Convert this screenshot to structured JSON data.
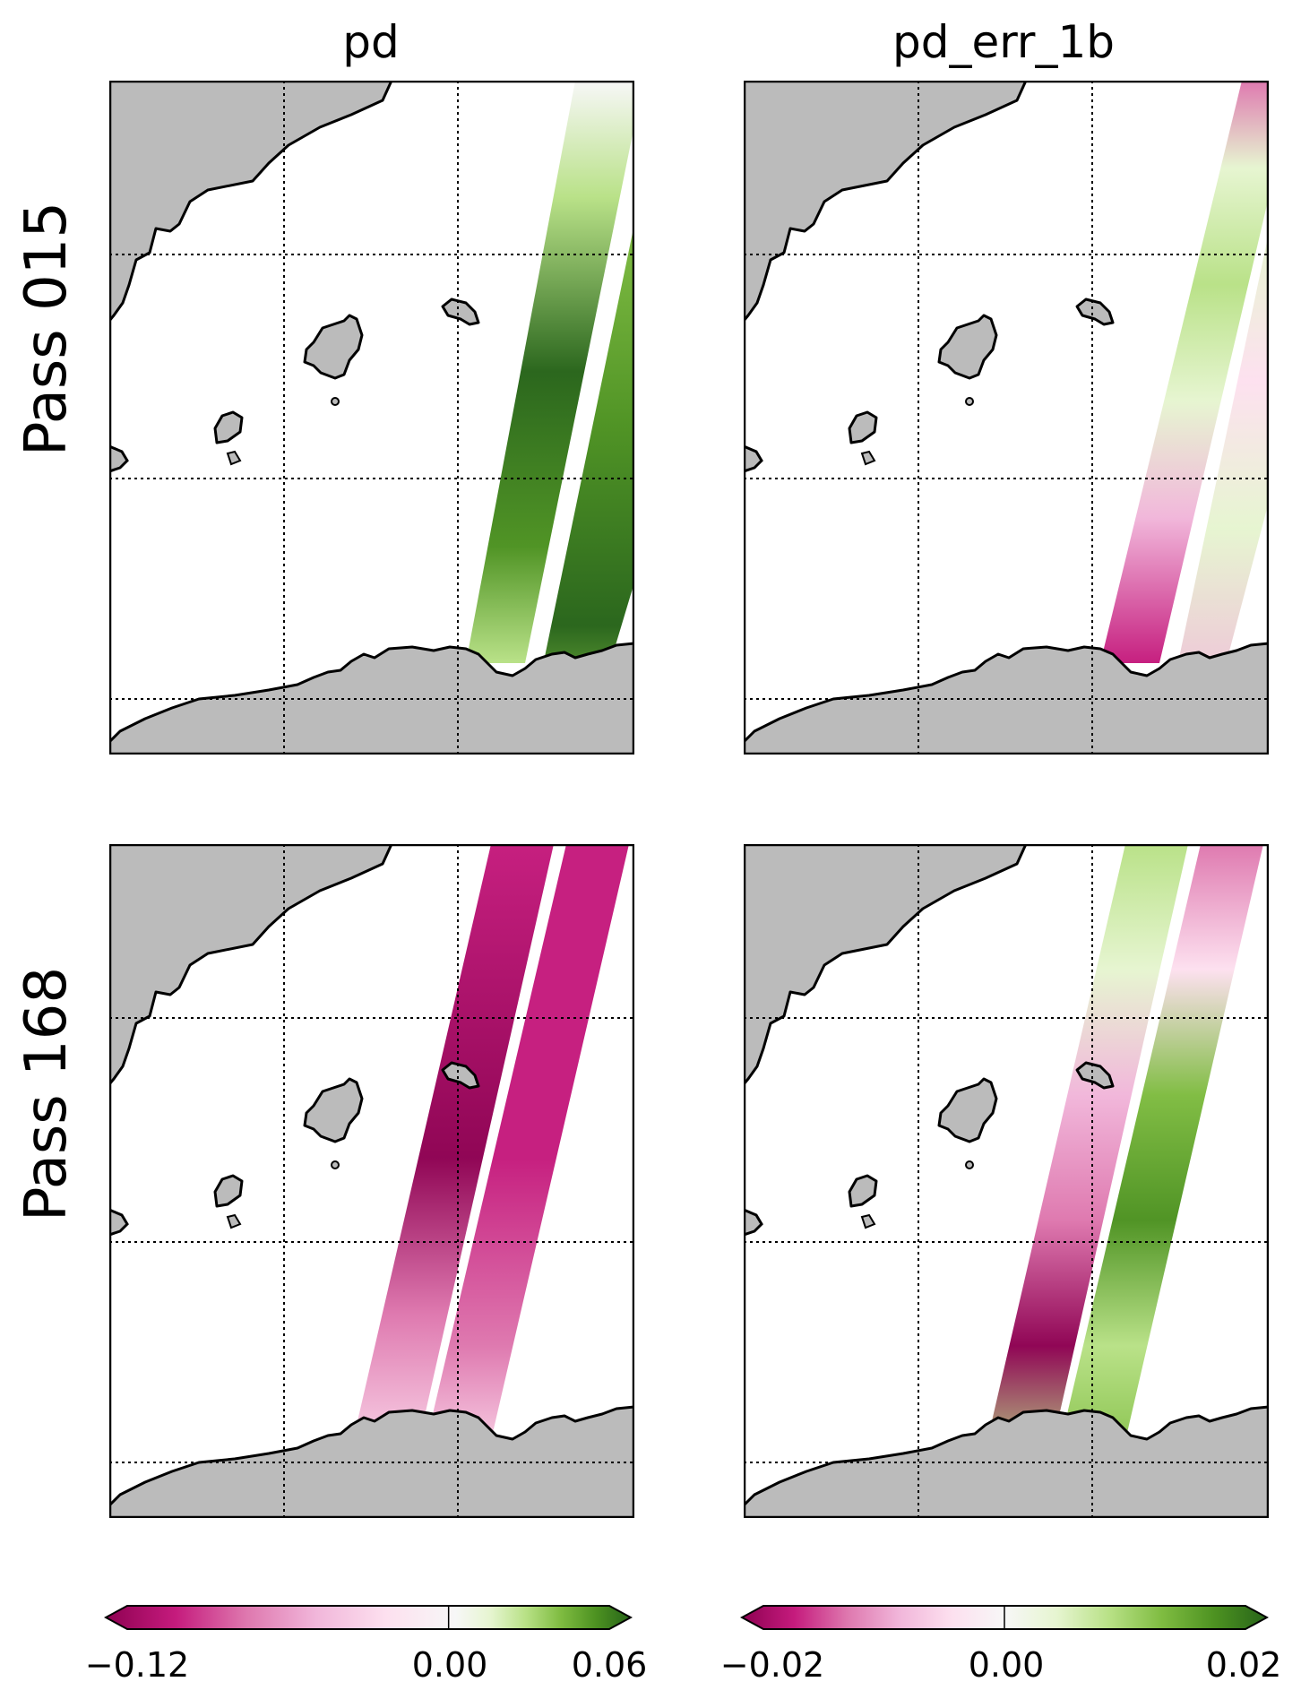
{
  "figure": {
    "column_titles": [
      "pd",
      "pd_err_1b"
    ],
    "row_titles": [
      "Pass 015",
      "Pass 168"
    ]
  },
  "panels": [
    {
      "id": "pass015-pd",
      "variable": "pd",
      "pass": "Pass 015",
      "pattern": "green-strong"
    },
    {
      "id": "pass015-err",
      "variable": "pd_err_1b",
      "pass": "Pass 015",
      "pattern": "mixed"
    },
    {
      "id": "pass168-pd",
      "variable": "pd",
      "pass": "Pass 168",
      "pattern": "magenta-strong"
    },
    {
      "id": "pass168-err",
      "variable": "pd_err_1b",
      "pass": "Pass 168",
      "pattern": "mixed"
    }
  ],
  "colorbars": [
    {
      "variable": "pd",
      "min": -0.12,
      "max": 0.06,
      "ticks": [
        "−0.12",
        "0.00",
        "0.06"
      ],
      "tick_values": [
        -0.12,
        0.0,
        0.06
      ]
    },
    {
      "variable": "pd_err_1b",
      "min": -0.02,
      "max": 0.02,
      "ticks": [
        "−0.02",
        "0.00",
        "0.02"
      ],
      "tick_values": [
        -0.02,
        0.0,
        0.02
      ]
    }
  ],
  "colors": {
    "land": "#bbbbbb",
    "coast": "#000000",
    "grid": "#000000",
    "cmap": [
      "#8e0152",
      "#c51b7d",
      "#de77ae",
      "#f1b6da",
      "#fde0ef",
      "#f7f7f7",
      "#e6f5d0",
      "#b8e186",
      "#7fbc41",
      "#4d9221",
      "#276419"
    ]
  },
  "colormap": "PiYG"
}
